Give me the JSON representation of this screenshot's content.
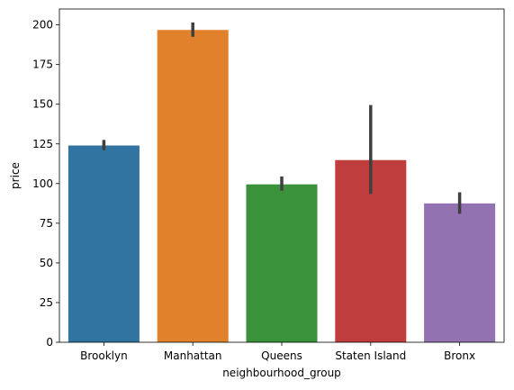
{
  "chart_data": {
    "type": "bar",
    "title": "",
    "xlabel": "neighbourhood_group",
    "ylabel": "price",
    "categories": [
      "Brooklyn",
      "Manhattan",
      "Queens",
      "Staten Island",
      "Bronx"
    ],
    "values": [
      124,
      196.8,
      99.5,
      114.8,
      87.5
    ],
    "error_low": [
      121,
      192.5,
      95.5,
      93.5,
      81
    ],
    "error_high": [
      127.5,
      201.5,
      104.5,
      149.5,
      94.5
    ],
    "colors": [
      "#3274a1",
      "#e1812c",
      "#3a923a",
      "#c03d3e",
      "#9372b2"
    ],
    "error_color": "#3f3f3f",
    "ylim": [
      0,
      210
    ],
    "yticks": [
      "0",
      "25",
      "50",
      "75",
      "100",
      "125",
      "150",
      "175",
      "200"
    ],
    "grid": false,
    "legend": "none"
  }
}
